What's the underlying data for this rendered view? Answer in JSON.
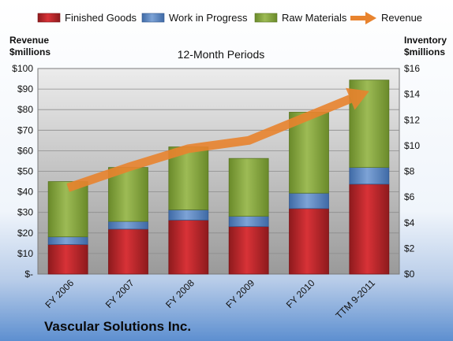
{
  "chart_data": {
    "type": "bar",
    "stacked": true,
    "title": "12-Month Periods",
    "company": "Vascular Solutions Inc.",
    "categories": [
      "FY 2006",
      "FY 2007",
      "FY 2008",
      "FY 2009",
      "FY 2010",
      "TTM 9-2011"
    ],
    "series": [
      {
        "name": "Finished Goods",
        "axis": "right",
        "color": "#c0262b",
        "values": [
          2.3,
          3.5,
          4.2,
          3.7,
          5.1,
          7.0
        ]
      },
      {
        "name": "Work in Progress",
        "axis": "right",
        "color": "#5b86c2",
        "values": [
          0.6,
          0.6,
          0.8,
          0.8,
          1.2,
          1.3
        ]
      },
      {
        "name": "Raw Materials",
        "axis": "right",
        "color": "#8aab3d",
        "values": [
          4.3,
          4.2,
          4.9,
          4.5,
          6.3,
          6.8
        ]
      },
      {
        "name": "Revenue",
        "axis": "left",
        "type": "line",
        "color": "#e8832e",
        "values": [
          42,
          52,
          61,
          65,
          77,
          89
        ]
      }
    ],
    "y_left": {
      "label_line1": "Revenue",
      "label_line2": "$millions",
      "range": [
        0,
        100
      ],
      "ticks": [
        0,
        10,
        20,
        30,
        40,
        50,
        60,
        70,
        80,
        90,
        100
      ],
      "tick_labels": [
        "$-",
        "$10",
        "$20",
        "$30",
        "$40",
        "$50",
        "$60",
        "$70",
        "$80",
        "$90",
        "$100"
      ]
    },
    "y_right": {
      "label_line1": "Inventory",
      "label_line2": "$millions",
      "range": [
        0,
        16
      ],
      "ticks": [
        0,
        2,
        4,
        6,
        8,
        10,
        12,
        14,
        16
      ],
      "tick_labels": [
        "$0",
        "$2",
        "$4",
        "$6",
        "$8",
        "$10",
        "$12",
        "$14",
        "$16"
      ]
    },
    "grid": true,
    "legend_position": "top"
  }
}
